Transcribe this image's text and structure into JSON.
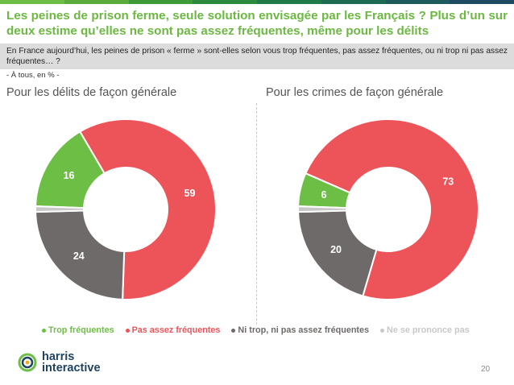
{
  "title": "Les peines de prison ferme, seule solution envisagée par les Français ? Plus d’un sur deux estime qu’elles ne sont pas assez fréquentes, même pour les délits",
  "question": "En France aujourd’hui, les peines de prison « ferme » sont-elles selon vous trop fréquentes, pas assez fréquentes, ou ni trop ni pas assez fréquentes… ?",
  "base": "- À tous, en % -",
  "logo": {
    "line1": "harris",
    "line2": "interactive"
  },
  "page_number": "20",
  "colors": {
    "trop": "#6dbe45",
    "pas_assez": "#ed5459",
    "ni_trop": "#6f6a6a",
    "nsp": "#c8c8c8"
  },
  "chart_data": [
    {
      "type": "pie",
      "title": "Pour les délits de façon générale",
      "categories": [
        "Trop fréquentes",
        "Pas assez fréquentes",
        "Ni trop, ni pas assez fréquentes",
        "Ne se prononce pas"
      ],
      "values": [
        16,
        59,
        24,
        1
      ],
      "labels": [
        "16",
        "59",
        "24",
        ""
      ]
    },
    {
      "type": "pie",
      "title": "Pour les crimes de façon générale",
      "categories": [
        "Trop fréquentes",
        "Pas assez fréquentes",
        "Ni trop, ni pas assez fréquentes",
        "Ne se prononce pas"
      ],
      "values": [
        6,
        73,
        20,
        1
      ],
      "labels": [
        "6",
        "73",
        "20",
        ""
      ]
    }
  ],
  "legend": [
    {
      "label": "Trop fréquentes",
      "color": "#6dbe45"
    },
    {
      "label": "Pas assez fréquentes",
      "color": "#ed5459"
    },
    {
      "label": "Ni trop, ni pas assez fréquentes",
      "color": "#6f6a6a"
    },
    {
      "label": "Ne se prononce pas",
      "color": "#c8c8c8"
    }
  ]
}
